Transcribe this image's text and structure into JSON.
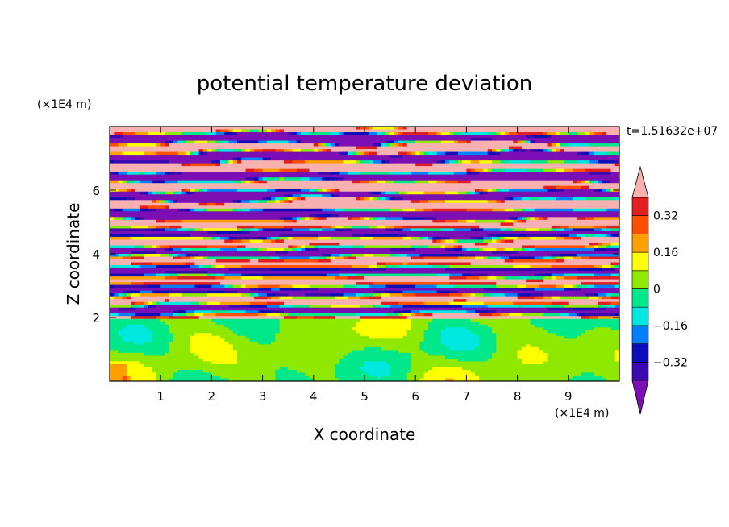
{
  "chart_data": {
    "type": "heatmap",
    "title": "potential temperature deviation",
    "xlabel": "X coordinate",
    "ylabel": "Z coordinate",
    "x_unit": "(×1E4 m)",
    "y_unit": "(×1E4 m)",
    "time_label": "t=1.51632e+07",
    "xlim": [
      0,
      10
    ],
    "ylim": [
      0,
      8
    ],
    "x_ticks": [
      1,
      2,
      3,
      4,
      5,
      6,
      7,
      8,
      9
    ],
    "y_ticks": [
      2,
      4,
      6
    ],
    "colorbar": {
      "levels": [
        -0.4,
        -0.32,
        -0.24,
        -0.16,
        -0.08,
        0,
        0.08,
        0.16,
        0.24,
        0.32,
        0.4
      ],
      "labels": [
        "0.32",
        "0.16",
        "0",
        "−0.16",
        "−0.32"
      ],
      "label_values": [
        0.32,
        0.16,
        0,
        -0.16,
        -0.32
      ],
      "colors_low_to_high": [
        "#7b0fb4",
        "#3a0ab0",
        "#0d0dba",
        "#0080ff",
        "#00e8e0",
        "#00e88a",
        "#8fe800",
        "#ffff00",
        "#ffa000",
        "#ff5000",
        "#e02020",
        "#f8b0b0"
      ],
      "extend": "both"
    }
  }
}
